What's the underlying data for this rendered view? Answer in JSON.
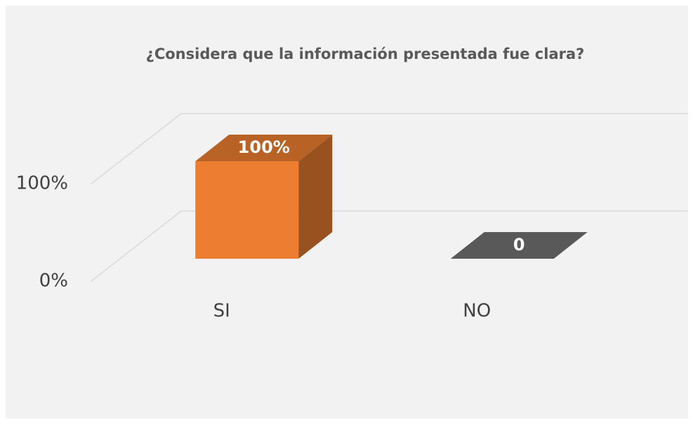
{
  "chart_data": {
    "type": "bar3d",
    "title": "¿Considera que la información presentada fue clara?",
    "categories": [
      "SI",
      "NO"
    ],
    "values": [
      100,
      0
    ],
    "value_labels": [
      "100%",
      "0"
    ],
    "colors": [
      "#ed7d31",
      "#595959"
    ],
    "ylim": [
      0,
      100
    ],
    "yticks": [
      {
        "value": 0,
        "label": "0%"
      },
      {
        "value": 100,
        "label": "100%"
      }
    ],
    "grid": true
  }
}
